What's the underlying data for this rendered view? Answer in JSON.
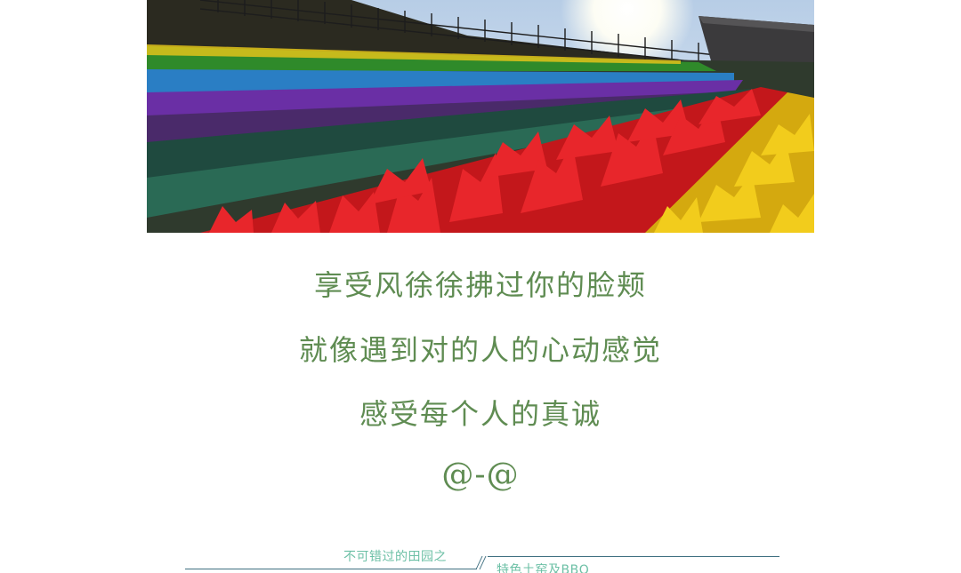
{
  "poem": {
    "line1": "享受风徐徐拂过你的脸颊",
    "line2": "就像遇到对的人的心动感觉",
    "line3": "感受每个人的真诚",
    "line4": "@-@"
  },
  "footer": {
    "caption_left": "不可错过的田园之",
    "caption_right": "特色土窑及BBQ"
  },
  "colors": {
    "poem_text": "#5f8c52",
    "caption_text": "#6dc0a6",
    "rule": "#3f6f80"
  }
}
